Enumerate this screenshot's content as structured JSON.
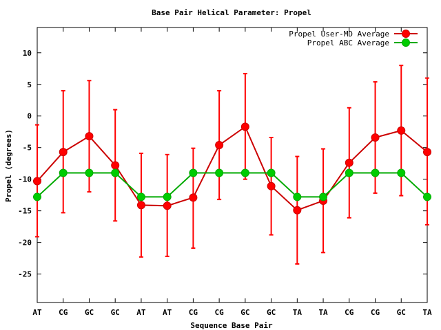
{
  "chart_data": {
    "type": "line",
    "title": "Base Pair Helical Parameter: Propel",
    "xlabel": "Sequence Base Pair",
    "ylabel": "Propel (degrees)",
    "ylim": [
      -29.5,
      14
    ],
    "yticks": [
      10,
      5,
      0,
      -5,
      -10,
      -15,
      -20,
      -25
    ],
    "categories": [
      "AT",
      "CG",
      "GC",
      "GC",
      "AT",
      "AT",
      "CG",
      "CG",
      "GC",
      "GC",
      "TA",
      "TA",
      "CG",
      "CG",
      "GC",
      "TA"
    ],
    "grid": false,
    "legend_position": "top-right",
    "series": [
      {
        "name": "Propel User-MD Average",
        "color": "#ff0000",
        "line_color": "#cc0000",
        "marker": "circle",
        "values": [
          -10.3,
          -5.7,
          -3.2,
          -7.8,
          -14.1,
          -14.2,
          -12.9,
          -4.6,
          -1.7,
          -11.1,
          -14.9,
          -13.4,
          -7.4,
          -3.4,
          -2.3,
          -5.7
        ],
        "error_low": [
          -19.1,
          -15.3,
          -12.0,
          -16.6,
          -22.3,
          -22.2,
          -20.9,
          -13.2,
          -10.0,
          -18.8,
          -23.4,
          -21.6,
          -16.1,
          -12.2,
          -12.6,
          -17.2
        ],
        "error_high": [
          -1.4,
          4.0,
          5.6,
          1.0,
          -5.9,
          -6.1,
          -5.1,
          4.0,
          6.7,
          -3.4,
          -6.4,
          -5.2,
          1.3,
          5.4,
          8.0,
          6.0
        ]
      },
      {
        "name": "Propel ABC Average",
        "color": "#00cc00",
        "line_color": "#00aa00",
        "marker": "circle",
        "values": [
          -12.8,
          -9.0,
          -9.0,
          -9.0,
          -12.8,
          -12.8,
          -9.0,
          -9.0,
          -9.0,
          -9.0,
          -12.8,
          -12.8,
          -9.0,
          -9.0,
          -9.0,
          -12.8
        ]
      }
    ]
  }
}
